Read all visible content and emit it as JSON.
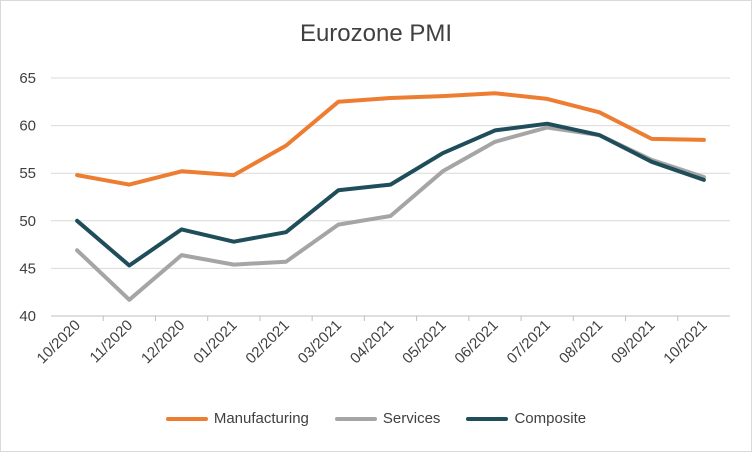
{
  "chart_data": {
    "type": "line",
    "title": "Eurozone PMI",
    "categories": [
      "10/2020",
      "11/2020",
      "12/2020",
      "01/2021",
      "02/2021",
      "03/2021",
      "04/2021",
      "05/2021",
      "06/2021",
      "07/2021",
      "08/2021",
      "09/2021",
      "10/2021"
    ],
    "series": [
      {
        "name": "Manufacturing",
        "color": "#ED7D31",
        "values": [
          54.8,
          53.8,
          55.2,
          54.8,
          57.9,
          62.5,
          62.9,
          63.1,
          63.4,
          62.8,
          61.4,
          58.6,
          58.5
        ]
      },
      {
        "name": "Services",
        "color": "#A5A5A5",
        "values": [
          46.9,
          41.7,
          46.4,
          45.4,
          45.7,
          49.6,
          50.5,
          55.2,
          58.3,
          59.8,
          59.0,
          56.4,
          54.6
        ]
      },
      {
        "name": "Composite",
        "color": "#1F4E5A",
        "values": [
          50.0,
          45.3,
          49.1,
          47.8,
          48.8,
          53.2,
          53.8,
          57.1,
          59.5,
          60.2,
          59.0,
          56.2,
          54.3
        ]
      }
    ],
    "ylim": [
      40,
      65
    ],
    "yticks": [
      40,
      45,
      50,
      55,
      60,
      65
    ],
    "grid": true,
    "legend_position": "bottom"
  }
}
